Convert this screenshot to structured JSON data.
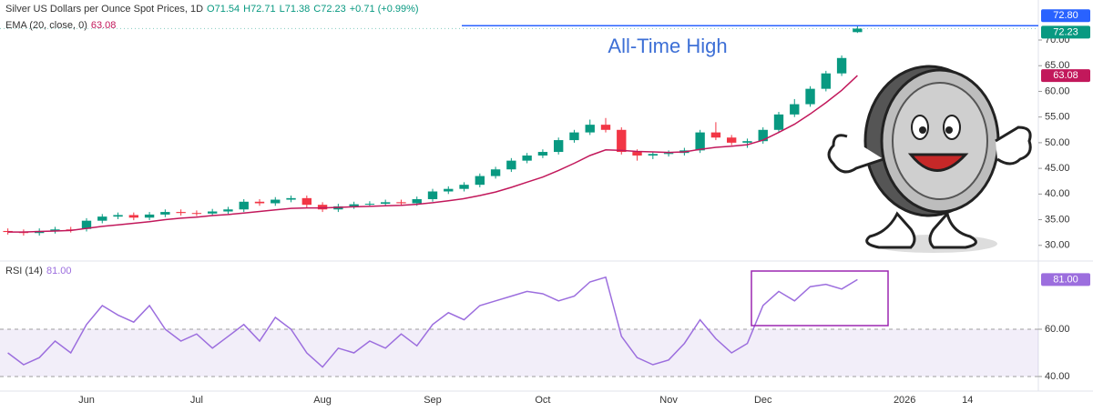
{
  "chart_data": [
    {
      "type": "candlestick",
      "title": "Silver US Dollars per Ounce Spot Prices, 1D",
      "ohlc_labels": [
        "O71.54",
        "H72.71",
        "L71.38",
        "C72.23"
      ],
      "change_label": "+0.71 (+0.99%)",
      "annotation": "All-Time High",
      "categories": [
        null,
        null,
        null,
        null,
        null,
        "Jun",
        null,
        null,
        null,
        null,
        null,
        null,
        "Jul",
        null,
        null,
        null,
        null,
        null,
        null,
        null,
        "Aug",
        null,
        null,
        null,
        null,
        null,
        null,
        "Sep",
        null,
        null,
        null,
        null,
        null,
        null,
        "Oct",
        null,
        null,
        null,
        null,
        null,
        null,
        null,
        "Nov",
        null,
        null,
        null,
        null,
        null,
        "Dec",
        null,
        null,
        null,
        null,
        null,
        null,
        null,
        null,
        "2026",
        null,
        null,
        null,
        "14",
        null,
        null,
        null,
        null
      ],
      "open": [
        32.8,
        32.6,
        32.4,
        32.8,
        33.1,
        33.2,
        34.8,
        35.6,
        35.9,
        35.4,
        36.0,
        36.5,
        36.3,
        36.2,
        36.6,
        37.0,
        38.5,
        38.2,
        38.9,
        39.2,
        37.9,
        37.0,
        37.6,
        38.0,
        38.1,
        38.4,
        38.2,
        39.0,
        40.5,
        41.0,
        41.8,
        43.5,
        44.8,
        46.5,
        47.5,
        48.2,
        50.5,
        52.0,
        53.5,
        52.5,
        48.2,
        47.5,
        47.8,
        48.0,
        48.5,
        52.0,
        51.0,
        50.0,
        50.3,
        52.5,
        55.5,
        57.5,
        60.5,
        63.5,
        71.54,
        null,
        null,
        null,
        null,
        null,
        null,
        null,
        null,
        null,
        null,
        null
      ],
      "high": [
        33.3,
        33.1,
        33.3,
        33.6,
        33.6,
        35.3,
        36.1,
        36.4,
        36.4,
        36.5,
        37.0,
        37.0,
        36.8,
        37.1,
        37.5,
        39.0,
        39.0,
        39.4,
        39.7,
        39.7,
        38.4,
        38.1,
        38.5,
        38.6,
        38.9,
        38.9,
        39.5,
        41.0,
        41.5,
        42.3,
        44.0,
        45.3,
        47.0,
        48.0,
        48.7,
        51.0,
        52.5,
        54.5,
        54.8,
        53.0,
        48.7,
        48.3,
        48.5,
        49.0,
        52.5,
        54.0,
        51.5,
        50.8,
        53.0,
        56.0,
        58.5,
        61.0,
        64.0,
        67.0,
        72.71,
        null,
        null,
        null,
        null,
        null,
        null,
        null,
        null,
        null,
        null,
        null
      ],
      "low": [
        32.1,
        31.9,
        31.9,
        32.3,
        32.5,
        32.7,
        34.3,
        35.1,
        34.9,
        34.9,
        35.5,
        35.8,
        35.7,
        35.7,
        36.1,
        36.5,
        37.7,
        37.7,
        38.4,
        37.4,
        36.5,
        36.5,
        37.1,
        37.5,
        37.6,
        37.7,
        37.7,
        38.5,
        40.0,
        40.5,
        41.3,
        43.0,
        44.3,
        46.0,
        47.0,
        47.7,
        50.0,
        51.5,
        52.0,
        47.7,
        46.5,
        46.8,
        47.3,
        47.5,
        48.0,
        50.5,
        49.5,
        49.0,
        49.8,
        52.0,
        55.0,
        57.0,
        60.0,
        63.0,
        71.38,
        null,
        null,
        null,
        null,
        null,
        null,
        null,
        null,
        null,
        null,
        null
      ],
      "close": [
        32.6,
        32.4,
        32.8,
        33.1,
        33.0,
        34.8,
        35.6,
        35.9,
        35.4,
        36.0,
        36.5,
        36.3,
        36.2,
        36.6,
        37.0,
        38.5,
        38.2,
        38.9,
        39.2,
        37.9,
        37.0,
        37.6,
        38.0,
        38.1,
        38.4,
        38.2,
        39.0,
        40.5,
        41.0,
        41.8,
        43.5,
        44.8,
        46.5,
        47.5,
        48.2,
        50.5,
        52.0,
        53.5,
        52.5,
        48.2,
        47.5,
        47.8,
        48.0,
        48.5,
        52.0,
        51.0,
        50.0,
        50.3,
        52.5,
        55.5,
        57.5,
        60.5,
        63.5,
        66.5,
        72.23,
        null,
        null,
        null,
        null,
        null,
        null,
        null,
        null,
        null,
        null,
        null
      ],
      "up_color": "#089981",
      "down_color": "#f23645",
      "series": [
        {
          "name": "EMA (20, close, 0)",
          "color": "#c2185b",
          "values": [
            32.6,
            32.6,
            32.7,
            32.8,
            32.9,
            33.3,
            33.7,
            34.0,
            34.3,
            34.6,
            35.0,
            35.3,
            35.5,
            35.8,
            36.0,
            36.3,
            36.6,
            36.9,
            37.2,
            37.3,
            37.3,
            37.4,
            37.5,
            37.6,
            37.7,
            37.8,
            38.0,
            38.3,
            38.7,
            39.1,
            39.7,
            40.4,
            41.3,
            42.3,
            43.3,
            44.6,
            46.0,
            47.5,
            48.6,
            48.5,
            48.3,
            48.2,
            48.1,
            48.2,
            48.7,
            49.1,
            49.3,
            49.6,
            50.5,
            52.0,
            53.6,
            55.6,
            57.8,
            60.2,
            63.08,
            null,
            null,
            null,
            null,
            null,
            null,
            null,
            null,
            null,
            null,
            null
          ]
        }
      ],
      "reference_line": {
        "value": 72.8,
        "label": "72.80",
        "color": "#2962ff"
      },
      "ylim": [
        27.3,
        77.8
      ],
      "yticks": [
        {
          "value": 30,
          "label": "30.00"
        },
        {
          "value": 35,
          "label": "35.00"
        },
        {
          "value": 40,
          "label": "40.00"
        },
        {
          "value": 45,
          "label": "45.00"
        },
        {
          "value": 50,
          "label": "50.00"
        },
        {
          "value": 55,
          "label": "55.00"
        },
        {
          "value": 60,
          "label": "60.00"
        },
        {
          "value": 65,
          "label": "65.00"
        },
        {
          "value": 70,
          "label": "70.00"
        }
      ]
    },
    {
      "type": "line",
      "series": [
        {
          "name": "RSI (14)",
          "color": "#9c6ede",
          "last_label": "81.00",
          "values": [
            50,
            45,
            48,
            55,
            50,
            62,
            70,
            66,
            63,
            70,
            60,
            55,
            58,
            52,
            57,
            62,
            55,
            65,
            60,
            50,
            44,
            52,
            50,
            55,
            52,
            58,
            53,
            62,
            67,
            64,
            70,
            72,
            74,
            76,
            75,
            72,
            74,
            80,
            82,
            57,
            48,
            45,
            47,
            54,
            64,
            56,
            50,
            54,
            70,
            76,
            72,
            78,
            79,
            77,
            81,
            null,
            null,
            null,
            null,
            null,
            null,
            null,
            null,
            null,
            null,
            null
          ]
        }
      ],
      "band": [
        40,
        60
      ],
      "band_color": "#7e57c2",
      "ylim": [
        34.6,
        87.7
      ],
      "yticks": [
        {
          "value": 40,
          "label": "40.00"
        },
        {
          "value": 60,
          "label": "60.00"
        }
      ]
    }
  ]
}
